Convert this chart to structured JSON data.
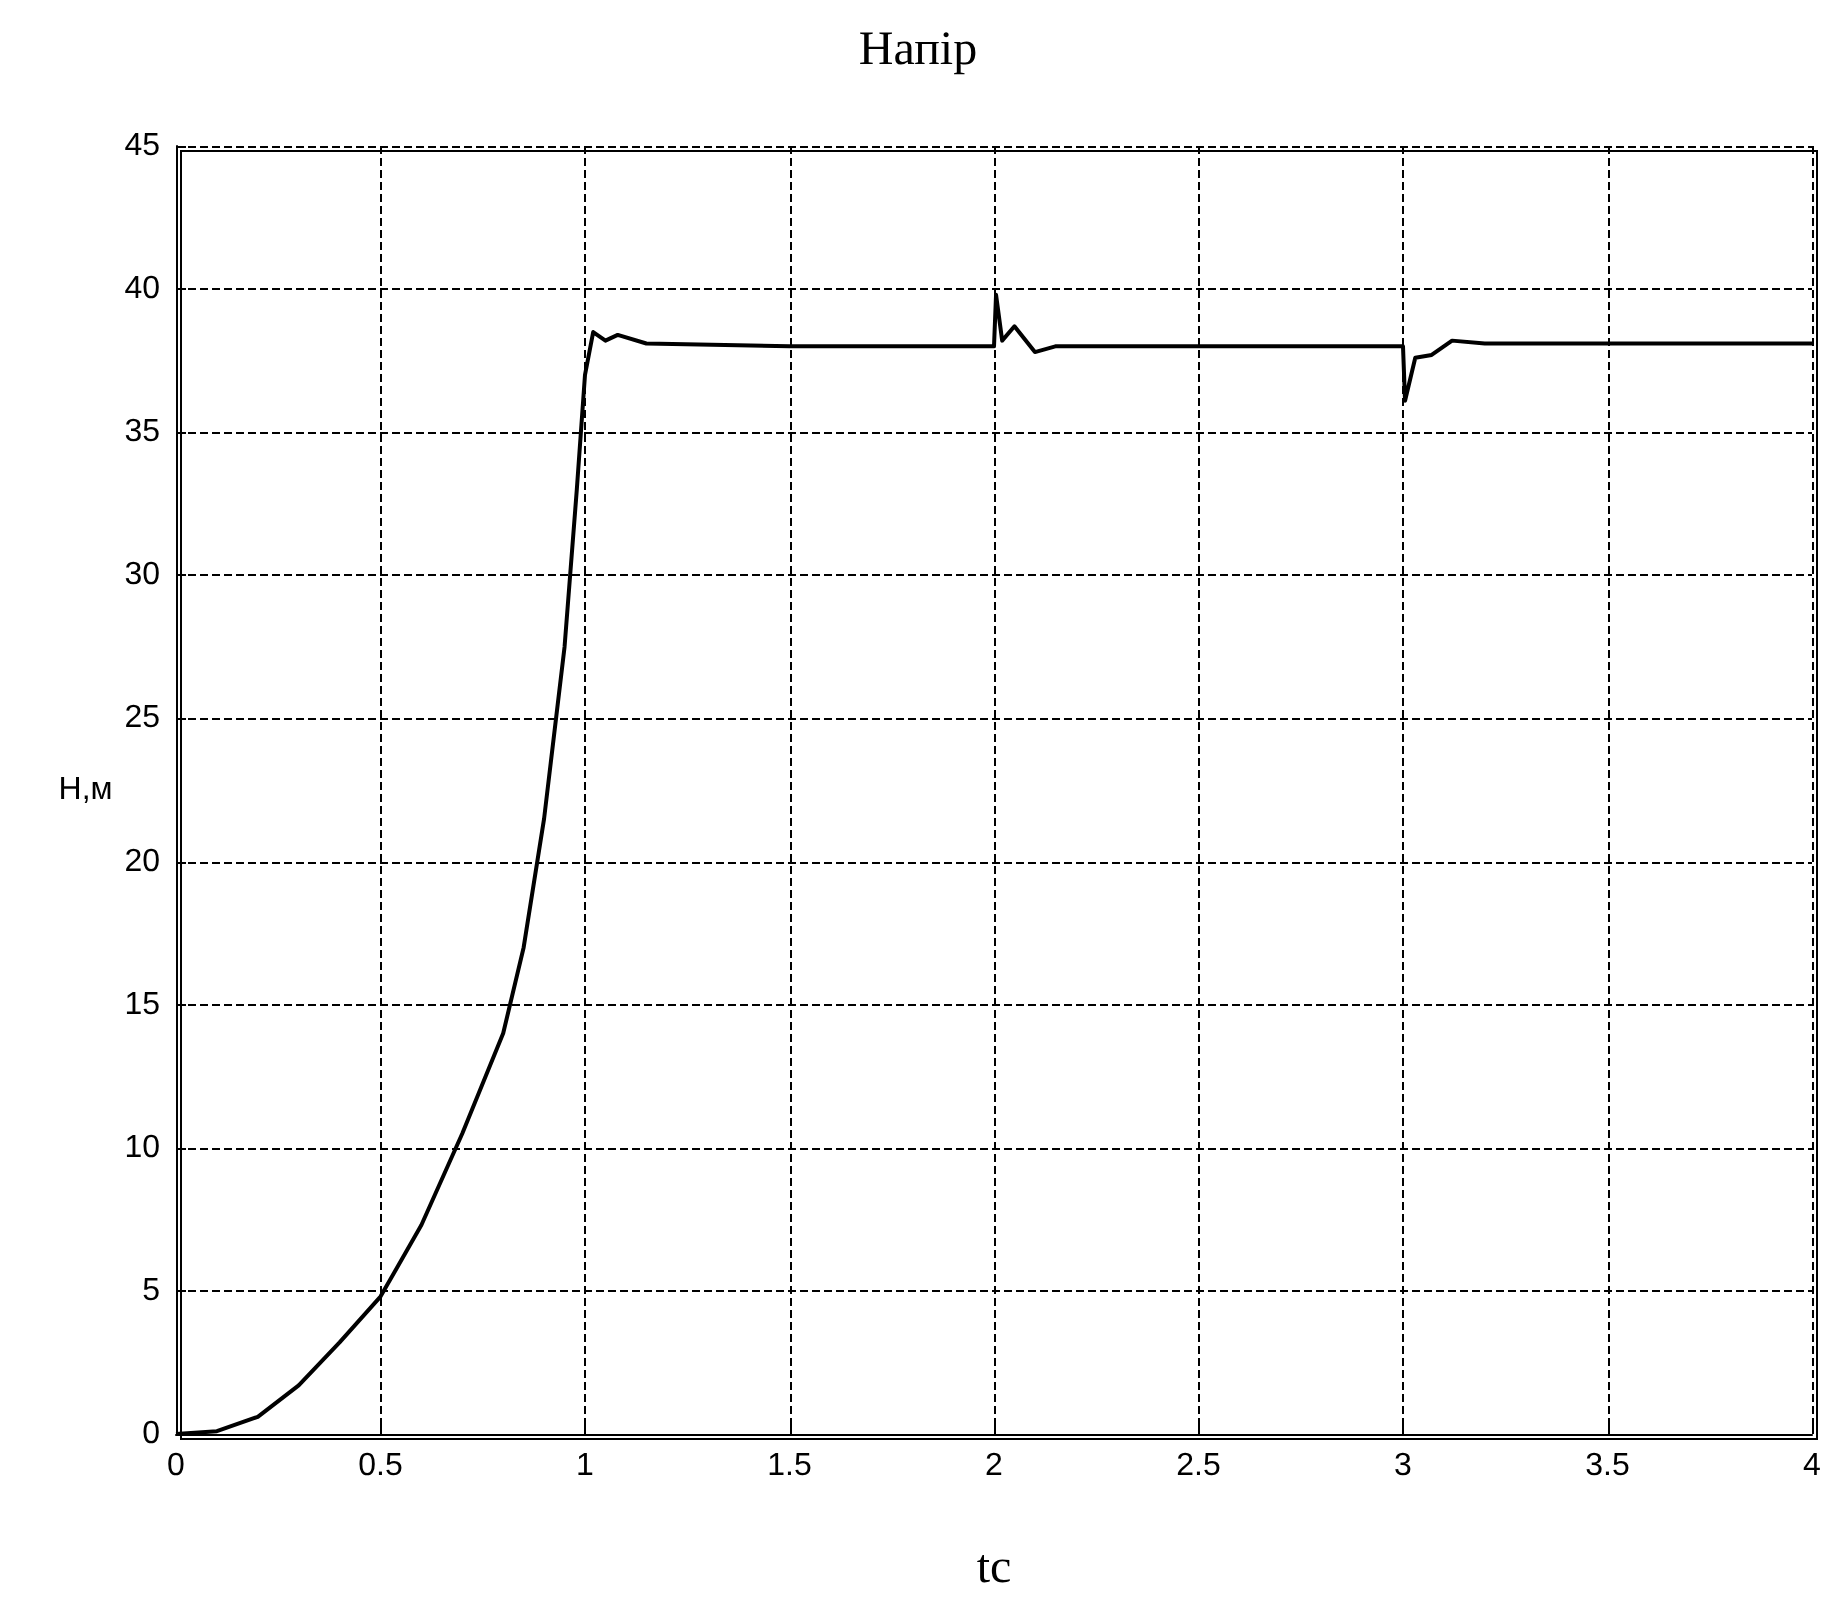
{
  "chart_data": {
    "type": "line",
    "title": "Напір",
    "xlabel": "tc",
    "ylabel": "H,м",
    "xlim": [
      0,
      4
    ],
    "xticks": [
      0,
      0.5,
      1,
      1.5,
      2,
      2.5,
      3,
      3.5,
      4
    ],
    "ylim": [
      0,
      45
    ],
    "yticks": [
      0,
      5,
      10,
      15,
      20,
      25,
      30,
      35,
      40,
      45
    ],
    "grid": true,
    "line_style": "solid",
    "series": [
      {
        "color": "#000000",
        "x": [
          0,
          0.1,
          0.2,
          0.3,
          0.4,
          0.5,
          0.6,
          0.7,
          0.8,
          0.85,
          0.9,
          0.95,
          0.98,
          1.0,
          1.02,
          1.05,
          1.08,
          1.15,
          1.5,
          2.0,
          2.005,
          2.02,
          2.05,
          2.1,
          2.15,
          3.0,
          3.005,
          3.03,
          3.07,
          3.12,
          3.2,
          4.0
        ],
        "values": [
          0,
          0.1,
          0.6,
          1.7,
          3.2,
          4.8,
          7.3,
          10.5,
          14,
          17,
          21.5,
          27.5,
          33,
          37,
          38.5,
          38.2,
          38.4,
          38.1,
          38,
          38,
          39.8,
          38.2,
          38.7,
          37.8,
          38,
          38,
          36.1,
          37.6,
          37.7,
          38.2,
          38.1,
          38.1
        ]
      }
    ]
  }
}
